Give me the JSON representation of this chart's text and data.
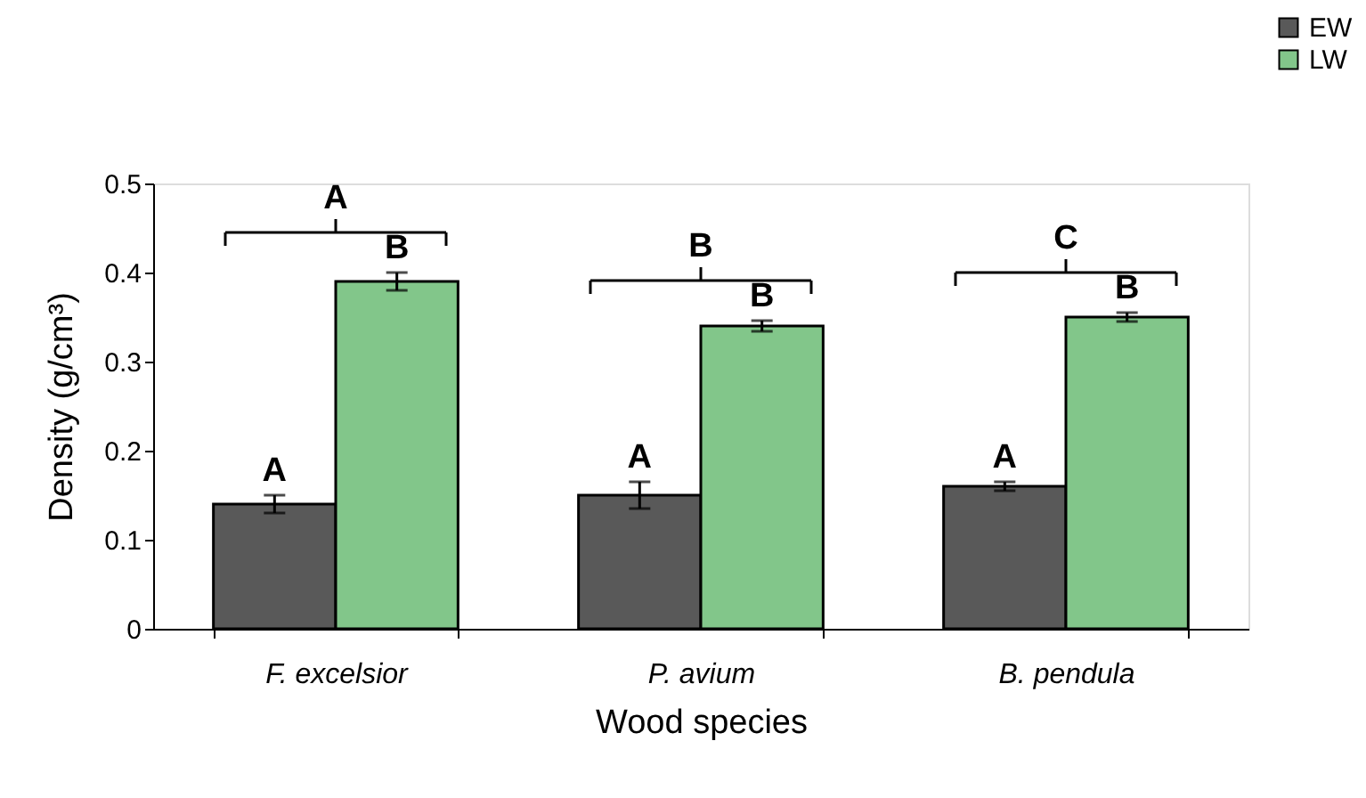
{
  "chart_data": {
    "type": "bar",
    "xlabel": "Wood species",
    "ylabel": "Density  (g/cm³)",
    "categories": [
      "F. excelsior",
      "P. avium",
      "B. pendula"
    ],
    "series": [
      {
        "name": "EW",
        "color": "#595959",
        "values": [
          0.14,
          0.15,
          0.16
        ],
        "errors": [
          0.01,
          0.015,
          0.005
        ],
        "value_labels": [
          "A",
          "A",
          "A"
        ]
      },
      {
        "name": "LW",
        "color": "#82c68a",
        "values": [
          0.39,
          0.34,
          0.35
        ],
        "errors": [
          0.01,
          0.006,
          0.005
        ],
        "value_labels": [
          "B",
          "B",
          "B"
        ]
      }
    ],
    "annotations": [
      "A",
      "B",
      "C"
    ],
    "ylim": [
      0,
      0.5
    ],
    "yticks": [
      0,
      0.1,
      0.2,
      0.3,
      0.4,
      0.5
    ],
    "grid": false,
    "legend": "top right"
  }
}
